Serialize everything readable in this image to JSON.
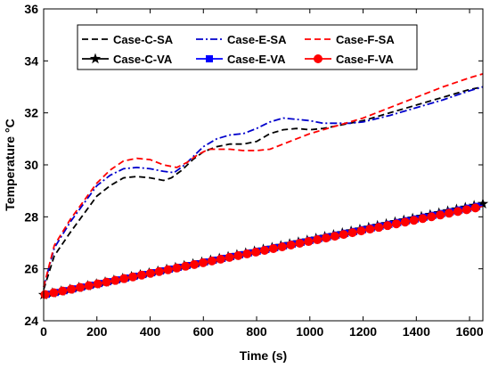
{
  "chart_data": {
    "type": "line",
    "xlabel": "Time (s)",
    "ylabel": "Temperature °C",
    "xlim": [
      0,
      1650
    ],
    "ylim": [
      24,
      36
    ],
    "xticks": [
      0,
      200,
      400,
      600,
      800,
      1000,
      1200,
      1400,
      1600
    ],
    "yticks": [
      24,
      26,
      28,
      30,
      32,
      34,
      36
    ],
    "grid": false,
    "legend_position": "top",
    "series": [
      {
        "name": "Case-C-SA",
        "color": "#000000",
        "style": "dashed",
        "marker": "none",
        "x": [
          0,
          40,
          100,
          150,
          200,
          250,
          300,
          350,
          400,
          450,
          480,
          520,
          560,
          600,
          650,
          700,
          750,
          800,
          850,
          900,
          950,
          1000,
          1050,
          1100,
          1150,
          1200,
          1300,
          1400,
          1500,
          1600,
          1650
        ],
        "y": [
          25.2,
          26.5,
          27.4,
          28.1,
          28.8,
          29.2,
          29.5,
          29.55,
          29.5,
          29.4,
          29.5,
          29.8,
          30.2,
          30.5,
          30.7,
          30.8,
          30.8,
          30.9,
          31.2,
          31.35,
          31.4,
          31.35,
          31.4,
          31.5,
          31.6,
          31.7,
          32.0,
          32.3,
          32.6,
          32.9,
          33.0
        ]
      },
      {
        "name": "Case-E-SA",
        "color": "#0000cc",
        "style": "dashdot",
        "marker": "none",
        "x": [
          0,
          40,
          100,
          150,
          200,
          250,
          300,
          350,
          400,
          450,
          490,
          530,
          570,
          600,
          650,
          700,
          750,
          800,
          850,
          900,
          950,
          1000,
          1050,
          1100,
          1150,
          1200,
          1300,
          1400,
          1500,
          1600,
          1650
        ],
        "y": [
          25.3,
          26.8,
          27.8,
          28.5,
          29.2,
          29.6,
          29.85,
          29.9,
          29.85,
          29.75,
          29.7,
          30.0,
          30.4,
          30.7,
          31.0,
          31.15,
          31.2,
          31.4,
          31.65,
          31.8,
          31.75,
          31.7,
          31.6,
          31.6,
          31.6,
          31.65,
          31.9,
          32.2,
          32.5,
          32.85,
          33.0
        ]
      },
      {
        "name": "Case-F-SA",
        "color": "#ff0000",
        "style": "dashed",
        "marker": "none",
        "x": [
          0,
          40,
          100,
          150,
          200,
          250,
          300,
          350,
          400,
          450,
          500,
          540,
          580,
          620,
          660,
          700,
          750,
          800,
          850,
          900,
          950,
          1000,
          1050,
          1100,
          1150,
          1200,
          1300,
          1400,
          1500,
          1600,
          1650
        ],
        "y": [
          25.3,
          26.9,
          27.9,
          28.6,
          29.3,
          29.8,
          30.15,
          30.25,
          30.2,
          30.0,
          29.9,
          30.1,
          30.4,
          30.6,
          30.6,
          30.6,
          30.55,
          30.55,
          30.6,
          30.8,
          31.0,
          31.2,
          31.35,
          31.5,
          31.65,
          31.8,
          32.2,
          32.6,
          33.0,
          33.35,
          33.5
        ]
      },
      {
        "name": "Case-C-VA",
        "color": "#000000",
        "style": "solid",
        "marker": "star",
        "x": [
          0,
          1650
        ],
        "y": [
          25.0,
          28.5
        ]
      },
      {
        "name": "Case-E-VA",
        "color": "#0000ff",
        "style": "solid",
        "marker": "square",
        "x": [
          0,
          1650
        ],
        "y": [
          25.0,
          28.45
        ]
      },
      {
        "name": "Case-F-VA",
        "color": "#ff0000",
        "style": "solid",
        "marker": "circle",
        "x": [
          0,
          1650
        ],
        "y": [
          25.0,
          28.4
        ]
      }
    ]
  }
}
